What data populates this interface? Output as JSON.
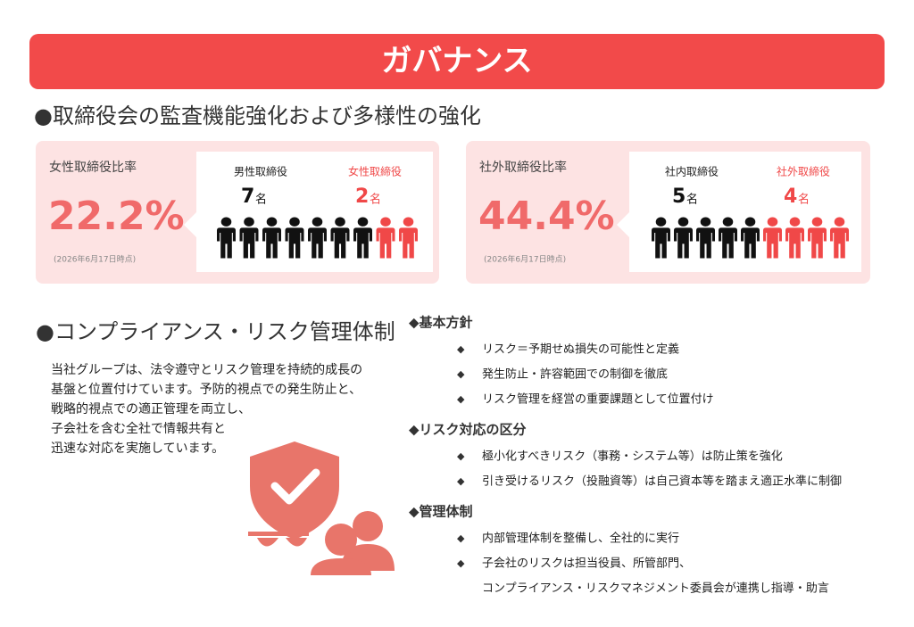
{
  "header": {
    "title": "ガバナンス"
  },
  "board": {
    "heading": "●取締役会の監査機能強化および多様性の強化",
    "panels": [
      {
        "label": "女性取締役比率",
        "rate": "22.2%",
        "date": "(2026年6月17日時点)",
        "groups": [
          {
            "name": "男性取締役",
            "count": 7,
            "unit": "名",
            "color": "#111111"
          },
          {
            "name": "女性取締役",
            "count": 2,
            "unit": "名",
            "color": "#f04848"
          }
        ]
      },
      {
        "label": "社外取締役比率",
        "rate": "44.4%",
        "date": "(2026年6月17日時点)",
        "groups": [
          {
            "name": "社内取締役",
            "count": 5,
            "unit": "名",
            "color": "#111111"
          },
          {
            "name": "社外取締役",
            "count": 4,
            "unit": "名",
            "color": "#f04848"
          }
        ]
      }
    ]
  },
  "compliance": {
    "heading": "●コンプライアンス・リスク管理体制",
    "paragraph": [
      "当社グループは、法令遵守とリスク管理を持続的成長の",
      "基盤と位置付けています。予防的視点での発生防止と、",
      "戦略的視点での適正管理を両立し、",
      "子会社を含む全社で情報共有と",
      "迅速な対応を実施しています。"
    ],
    "bullet": "◆",
    "policies": [
      {
        "title": "◆基本方針",
        "items": [
          [
            "リスク＝予期せぬ損失の可能性と定義"
          ],
          [
            "発生防止・許容範囲での制御を徹底"
          ],
          [
            "リスク管理を経営の重要課題として位置付け"
          ]
        ]
      },
      {
        "title": "◆リスク対応の区分",
        "items": [
          [
            "極小化すべきリスク（事務・システム等）は防止策を強化"
          ],
          [
            "引き受けるリスク（投融資等）は自己資本等を踏まえ適正水準に制御"
          ]
        ]
      },
      {
        "title": "◆管理体制",
        "items": [
          [
            "内部管理体制を整備し、全社的に実行"
          ],
          [
            "子会社のリスクは担当役員、所管部門、",
            "コンプライアンス・リスクマネジメント委員会が連携し指導・助言"
          ]
        ]
      }
    ]
  }
}
